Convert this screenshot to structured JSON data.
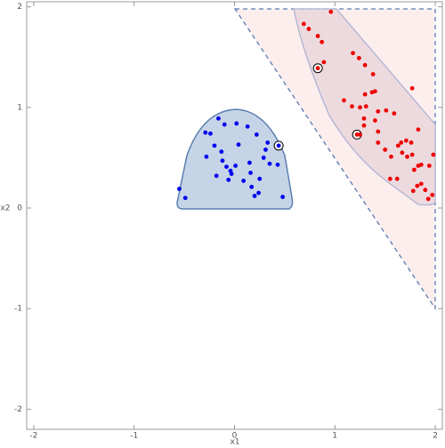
{
  "chart_data": {
    "type": "scatter",
    "x_label": "x1",
    "y_label": "x2",
    "xlim": [
      -2.07,
      2.07
    ],
    "ylim": [
      -2.2,
      2.05
    ],
    "xticks": [
      -2,
      -1,
      0,
      1,
      2
    ],
    "yticks": [
      -2,
      -1,
      0,
      1,
      2
    ],
    "grid": false,
    "series": [
      {
        "color": "#0000ee",
        "circled": [
          24
        ],
        "x": [
          -0.16,
          -0.24,
          -0.29,
          -0.1,
          0.02,
          0.13,
          0.22,
          0.33,
          0.04,
          -0.2,
          -0.13,
          -0.28,
          0.31,
          -0.12,
          0.01,
          0.29,
          0.15,
          -0.08,
          0.35,
          -0.18,
          -0.04,
          -0.03,
          0.16,
          0.43,
          0.44,
          -0.06,
          0.09,
          0.25,
          0.17,
          -0.49,
          -0.55,
          0.24,
          0.48,
          0.2
        ],
        "y": [
          0.89,
          0.74,
          0.75,
          0.83,
          0.84,
          0.81,
          0.73,
          0.65,
          0.63,
          0.62,
          0.56,
          0.51,
          0.58,
          0.47,
          0.42,
          0.5,
          0.45,
          0.41,
          0.44,
          0.32,
          0.37,
          0.34,
          0.35,
          0.43,
          0.62,
          0.28,
          0.27,
          0.29,
          0.21,
          0.1,
          0.19,
          0.15,
          0.11,
          0.12
        ]
      },
      {
        "color": "#ee0000",
        "circled": [
          6,
          24
        ],
        "x": [
          0.69,
          0.74,
          0.96,
          0.83,
          0.87,
          0.89,
          0.83,
          1.18,
          1.24,
          1.3,
          1.38,
          1.09,
          1.17,
          1.25,
          1.3,
          1.37,
          1.4,
          1.31,
          1.43,
          1.51,
          1.29,
          1.4,
          1.59,
          1.77,
          1.22,
          1.25,
          1.29,
          1.43,
          1.43,
          1.5,
          1.56,
          1.63,
          1.66,
          1.71,
          1.76,
          1.83,
          1.67,
          1.72,
          1.77,
          1.83,
          1.79,
          1.86,
          1.94,
          1.55,
          1.62,
          1.82,
          1.86,
          1.78,
          1.9,
          1.97,
          1.93,
          1.98
        ],
        "y": [
          1.83,
          1.78,
          1.95,
          1.71,
          1.65,
          1.45,
          1.39,
          1.54,
          1.49,
          1.42,
          1.33,
          1.07,
          1.01,
          1.0,
          1.13,
          1.15,
          1.16,
          1.01,
          0.96,
          0.97,
          0.89,
          0.87,
          0.94,
          1.19,
          0.73,
          0.73,
          0.82,
          0.76,
          0.65,
          0.58,
          0.51,
          0.62,
          0.65,
          0.67,
          0.65,
          0.78,
          0.55,
          0.51,
          0.53,
          0.42,
          0.38,
          0.43,
          0.42,
          0.29,
          0.29,
          0.22,
          0.24,
          0.17,
          0.18,
          0.13,
          0.09,
          0.53
        ]
      }
    ]
  }
}
